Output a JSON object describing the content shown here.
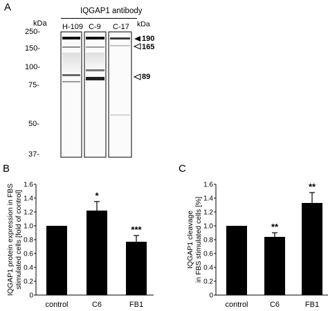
{
  "panel_a": {
    "letter": "A",
    "antibody_title": "IQGAP1 antibody",
    "kda_label": "kDa",
    "kda_label_right": "kDa",
    "lanes": [
      "H-109",
      "C-9",
      "C-17"
    ],
    "markers": [
      "250-",
      "150-",
      "100-",
      "75-",
      "50-",
      "37-"
    ],
    "right_labels": [
      {
        "text": "190",
        "arrow": "filled"
      },
      {
        "text": "165",
        "arrow": "open"
      },
      {
        "text": "89",
        "arrow": "open"
      }
    ]
  },
  "chart_data": [
    {
      "type": "bar",
      "panel": "B",
      "categories": [
        "control",
        "C6",
        "FB1"
      ],
      "values": [
        1.0,
        1.22,
        0.77
      ],
      "errors": [
        0,
        0.13,
        0.09
      ],
      "significance": [
        "",
        "*",
        "***"
      ],
      "ylabel": "IQGAP1 protein expression in FBS stimulated cells [fold of control]",
      "ylim": [
        0,
        1.6
      ],
      "yticks": [
        "0",
        "0.2",
        "0.4",
        "0.6",
        "0.8",
        "1.0",
        "1.2",
        "1.4",
        "1.6"
      ],
      "grid": false,
      "bar_color": "#000000"
    },
    {
      "type": "bar",
      "panel": "C",
      "categories": [
        "control",
        "C6",
        "FB1"
      ],
      "values": [
        1.0,
        0.84,
        1.33
      ],
      "errors": [
        0,
        0.06,
        0.15
      ],
      "significance": [
        "",
        "**",
        "**"
      ],
      "ylabel": "IQGAP1 cleavage in FBS stimulated cells [%]",
      "ylim": [
        0,
        1.6
      ],
      "yticks": [
        "0",
        "0.2",
        "0.4",
        "0.6",
        "0.8",
        "1.0",
        "1.2",
        "1.4",
        "1.6"
      ],
      "grid": false,
      "bar_color": "#000000"
    }
  ]
}
